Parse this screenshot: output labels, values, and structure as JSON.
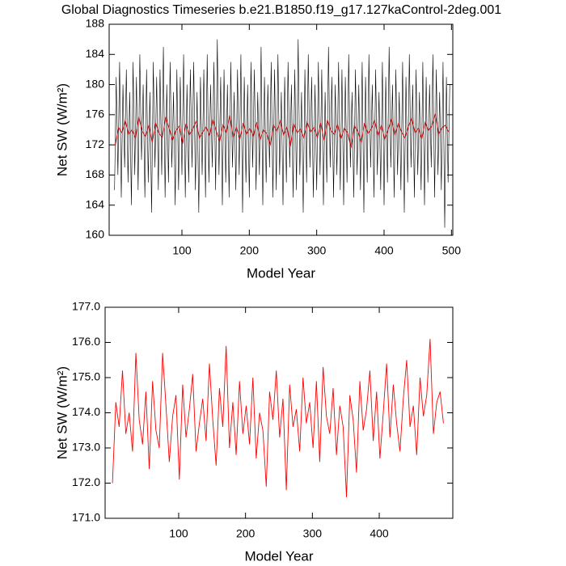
{
  "chart_data": [
    {
      "type": "line",
      "title": "Global Diagnostics Timeseries b.e21.B1850.f19_g17.127kaControl-2deg.001",
      "xlabel": "Model Year",
      "ylabel": "Net SW (W/m²)",
      "xlim": [
        -8,
        502
      ],
      "xticks": [
        100,
        200,
        300,
        400,
        500
      ],
      "ylim": [
        160,
        188
      ],
      "yticks": [
        160,
        164,
        168,
        172,
        176,
        180,
        184,
        188
      ],
      "series": [
        {
          "color": "#000000",
          "x": [
            0,
            2.5,
            5,
            7.5,
            10,
            12.5,
            15,
            17.5,
            20,
            22.5,
            25,
            27.5,
            30,
            32.5,
            35,
            37.5,
            40,
            42.5,
            45,
            47.5,
            50,
            52.5,
            55,
            57.5,
            60,
            62.5,
            65,
            67.5,
            70,
            72.5,
            75,
            77.5,
            80,
            82.5,
            85,
            87.5,
            90,
            92.5,
            95,
            97.5,
            100,
            102.5,
            105,
            107.5,
            110,
            112.5,
            115,
            117.5,
            120,
            122.5,
            125,
            127.5,
            130,
            132.5,
            135,
            137.5,
            140,
            142.5,
            145,
            147.5,
            150,
            152.5,
            155,
            157.5,
            160,
            162.5,
            165,
            167.5,
            170,
            172.5,
            175,
            177.5,
            180,
            182.5,
            185,
            187.5,
            190,
            192.5,
            195,
            197.5,
            200,
            202.5,
            205,
            207.5,
            210,
            212.5,
            215,
            217.5,
            220,
            222.5,
            225,
            227.5,
            230,
            232.5,
            235,
            237.5,
            240,
            242.5,
            245,
            247.5,
            250,
            252.5,
            255,
            257.5,
            260,
            262.5,
            265,
            267.5,
            270,
            272.5,
            275,
            277.5,
            280,
            282.5,
            285,
            287.5,
            290,
            292.5,
            295,
            297.5,
            300,
            302.5,
            305,
            307.5,
            310,
            312.5,
            315,
            317.5,
            320,
            322.5,
            325,
            327.5,
            330,
            332.5,
            335,
            337.5,
            340,
            342.5,
            345,
            347.5,
            350,
            352.5,
            355,
            357.5,
            360,
            362.5,
            365,
            367.5,
            370,
            372.5,
            375,
            377.5,
            380,
            382.5,
            385,
            387.5,
            390,
            392.5,
            395,
            397.5,
            400,
            402.5,
            405,
            407.5,
            410,
            412.5,
            415,
            417.5,
            420,
            422.5,
            425,
            427.5,
            430,
            432.5,
            435,
            437.5,
            440,
            442.5,
            445,
            447.5,
            450,
            452.5,
            455,
            457.5,
            460,
            462.5,
            465,
            467.5,
            470,
            472.5,
            475,
            477.5,
            480,
            482.5,
            485,
            487.5,
            490,
            492.5,
            495,
            497.5
          ],
          "values": [
            166,
            181,
            168,
            183,
            165,
            180,
            169,
            182,
            167,
            179,
            164,
            183,
            168,
            181,
            166,
            184,
            170,
            180,
            165,
            182,
            167,
            179,
            163,
            183,
            169,
            181,
            166,
            182,
            168,
            185,
            165,
            180,
            167,
            183,
            169,
            179,
            164,
            182,
            166,
            181,
            168,
            184,
            165,
            180,
            167,
            182,
            169,
            183,
            166,
            179,
            163,
            181,
            168,
            182,
            165,
            184,
            167,
            180,
            169,
            183,
            166,
            186,
            168,
            181,
            164,
            182,
            167,
            180,
            165,
            183,
            169,
            179,
            166,
            182,
            168,
            184,
            163,
            181,
            167,
            180,
            165,
            183,
            169,
            182,
            166,
            179,
            168,
            185,
            164,
            181,
            167,
            180,
            169,
            183,
            165,
            182,
            166,
            184,
            168,
            179,
            164,
            181,
            167,
            183,
            169,
            180,
            165,
            182,
            166,
            186,
            168,
            179,
            163,
            182,
            167,
            184,
            169,
            181,
            165,
            180,
            166,
            183,
            168,
            182,
            164,
            179,
            167,
            185,
            169,
            181,
            165,
            180,
            168,
            183,
            166,
            182,
            164,
            181,
            167,
            184,
            169,
            179,
            165,
            182,
            168,
            180,
            166,
            183,
            163,
            181,
            167,
            184,
            169,
            180,
            165,
            182,
            168,
            179,
            166,
            183,
            164,
            181,
            167,
            185,
            169,
            180,
            165,
            182,
            168,
            179,
            166,
            183,
            163,
            181,
            167,
            184,
            169,
            180,
            165,
            182,
            168,
            179,
            166,
            183,
            164,
            181,
            167,
            180,
            169,
            184,
            165,
            182,
            168,
            179,
            166,
            183,
            161,
            181,
            167,
            180
          ]
        },
        {
          "color": "#cc0000",
          "x": [
            1,
            6,
            11,
            16,
            21,
            26,
            31,
            36,
            41,
            46,
            51,
            56,
            61,
            66,
            71,
            76,
            81,
            86,
            91,
            96,
            101,
            106,
            111,
            116,
            121,
            126,
            131,
            136,
            141,
            146,
            151,
            156,
            161,
            166,
            171,
            176,
            181,
            186,
            191,
            196,
            201,
            206,
            211,
            216,
            221,
            226,
            231,
            236,
            241,
            246,
            251,
            256,
            261,
            266,
            271,
            276,
            281,
            286,
            291,
            296,
            301,
            306,
            311,
            316,
            321,
            326,
            331,
            336,
            341,
            346,
            351,
            356,
            361,
            366,
            371,
            376,
            381,
            386,
            391,
            396,
            401,
            406,
            411,
            416,
            421,
            426,
            431,
            436,
            441,
            446,
            451,
            456,
            461,
            466,
            471,
            476,
            481,
            486,
            491,
            496
          ],
          "values": [
            172.0,
            174.3,
            173.6,
            175.2,
            173.4,
            174.0,
            172.9,
            175.7,
            173.8,
            173.1,
            174.6,
            172.4,
            174.9,
            173.5,
            173.0,
            175.7,
            174.2,
            172.6,
            173.9,
            174.5,
            172.1,
            174.8,
            173.3,
            174.1,
            175.1,
            172.9,
            173.7,
            174.4,
            173.2,
            175.4,
            173.8,
            172.5,
            174.7,
            173.6,
            175.9,
            173.0,
            174.3,
            172.8,
            174.9,
            173.4,
            174.2,
            173.1,
            175.0,
            172.7,
            174.0,
            173.5,
            171.9,
            174.6,
            173.8,
            175.2,
            173.3,
            174.4,
            171.8,
            174.8,
            173.6,
            174.1,
            172.9,
            175.0,
            173.7,
            174.3,
            173.0,
            174.9,
            172.6,
            175.3,
            173.9,
            173.4,
            174.7,
            172.8,
            174.2,
            173.6,
            171.6,
            174.5,
            173.8,
            172.3,
            174.9,
            173.5,
            174.1,
            175.2,
            173.2,
            174.6,
            172.7,
            174.0,
            175.4,
            173.3,
            174.8,
            173.7,
            172.9,
            174.4,
            175.5,
            173.6,
            174.2,
            172.8,
            175.0,
            173.9,
            174.5,
            176.1,
            173.4,
            174.3,
            174.6,
            173.7
          ]
        }
      ]
    },
    {
      "type": "line",
      "xlabel": "Model Year",
      "ylabel": "Net SW (W/m²)",
      "xlim": [
        -10,
        510
      ],
      "xticks": [
        100,
        200,
        300,
        400
      ],
      "ylim": [
        171,
        177
      ],
      "yticks": [
        {
          "value": 171,
          "label": "171.0"
        },
        {
          "value": 172,
          "label": "172.0"
        },
        {
          "value": 173,
          "label": "173.0"
        },
        {
          "value": 174,
          "label": "174.0"
        },
        {
          "value": 175,
          "label": "175.0"
        },
        {
          "value": 176,
          "label": "176.0"
        },
        {
          "value": 177,
          "label": "177.0"
        }
      ],
      "series": [
        {
          "color": "#ff0000",
          "x": [
            1,
            6,
            11,
            16,
            21,
            26,
            31,
            36,
            41,
            46,
            51,
            56,
            61,
            66,
            71,
            76,
            81,
            86,
            91,
            96,
            101,
            106,
            111,
            116,
            121,
            126,
            131,
            136,
            141,
            146,
            151,
            156,
            161,
            166,
            171,
            176,
            181,
            186,
            191,
            196,
            201,
            206,
            211,
            216,
            221,
            226,
            231,
            236,
            241,
            246,
            251,
            256,
            261,
            266,
            271,
            276,
            281,
            286,
            291,
            296,
            301,
            306,
            311,
            316,
            321,
            326,
            331,
            336,
            341,
            346,
            351,
            356,
            361,
            366,
            371,
            376,
            381,
            386,
            391,
            396,
            401,
            406,
            411,
            416,
            421,
            426,
            431,
            436,
            441,
            446,
            451,
            456,
            461,
            466,
            471,
            476,
            481,
            486,
            491,
            496
          ],
          "values": [
            172.0,
            174.3,
            173.6,
            175.2,
            173.4,
            174.0,
            172.9,
            175.7,
            173.8,
            173.1,
            174.6,
            172.4,
            174.9,
            173.5,
            173.0,
            175.7,
            174.2,
            172.6,
            173.9,
            174.5,
            172.1,
            174.8,
            173.3,
            174.1,
            175.1,
            172.9,
            173.7,
            174.4,
            173.2,
            175.4,
            173.8,
            172.5,
            174.7,
            173.6,
            175.9,
            173.0,
            174.3,
            172.8,
            174.9,
            173.4,
            174.2,
            173.1,
            175.0,
            172.7,
            174.0,
            173.5,
            171.9,
            174.6,
            173.8,
            175.2,
            173.3,
            174.4,
            171.8,
            174.8,
            173.6,
            174.1,
            172.9,
            175.0,
            173.7,
            174.3,
            173.0,
            174.9,
            172.6,
            175.3,
            173.9,
            173.4,
            174.7,
            172.8,
            174.2,
            173.6,
            171.6,
            174.5,
            173.8,
            172.3,
            174.9,
            173.5,
            174.1,
            175.2,
            173.2,
            174.6,
            172.7,
            174.0,
            175.4,
            173.3,
            174.8,
            173.7,
            172.9,
            174.4,
            175.5,
            173.6,
            174.2,
            172.8,
            175.0,
            173.9,
            174.5,
            176.1,
            173.4,
            174.3,
            174.6,
            173.7
          ]
        }
      ]
    }
  ]
}
